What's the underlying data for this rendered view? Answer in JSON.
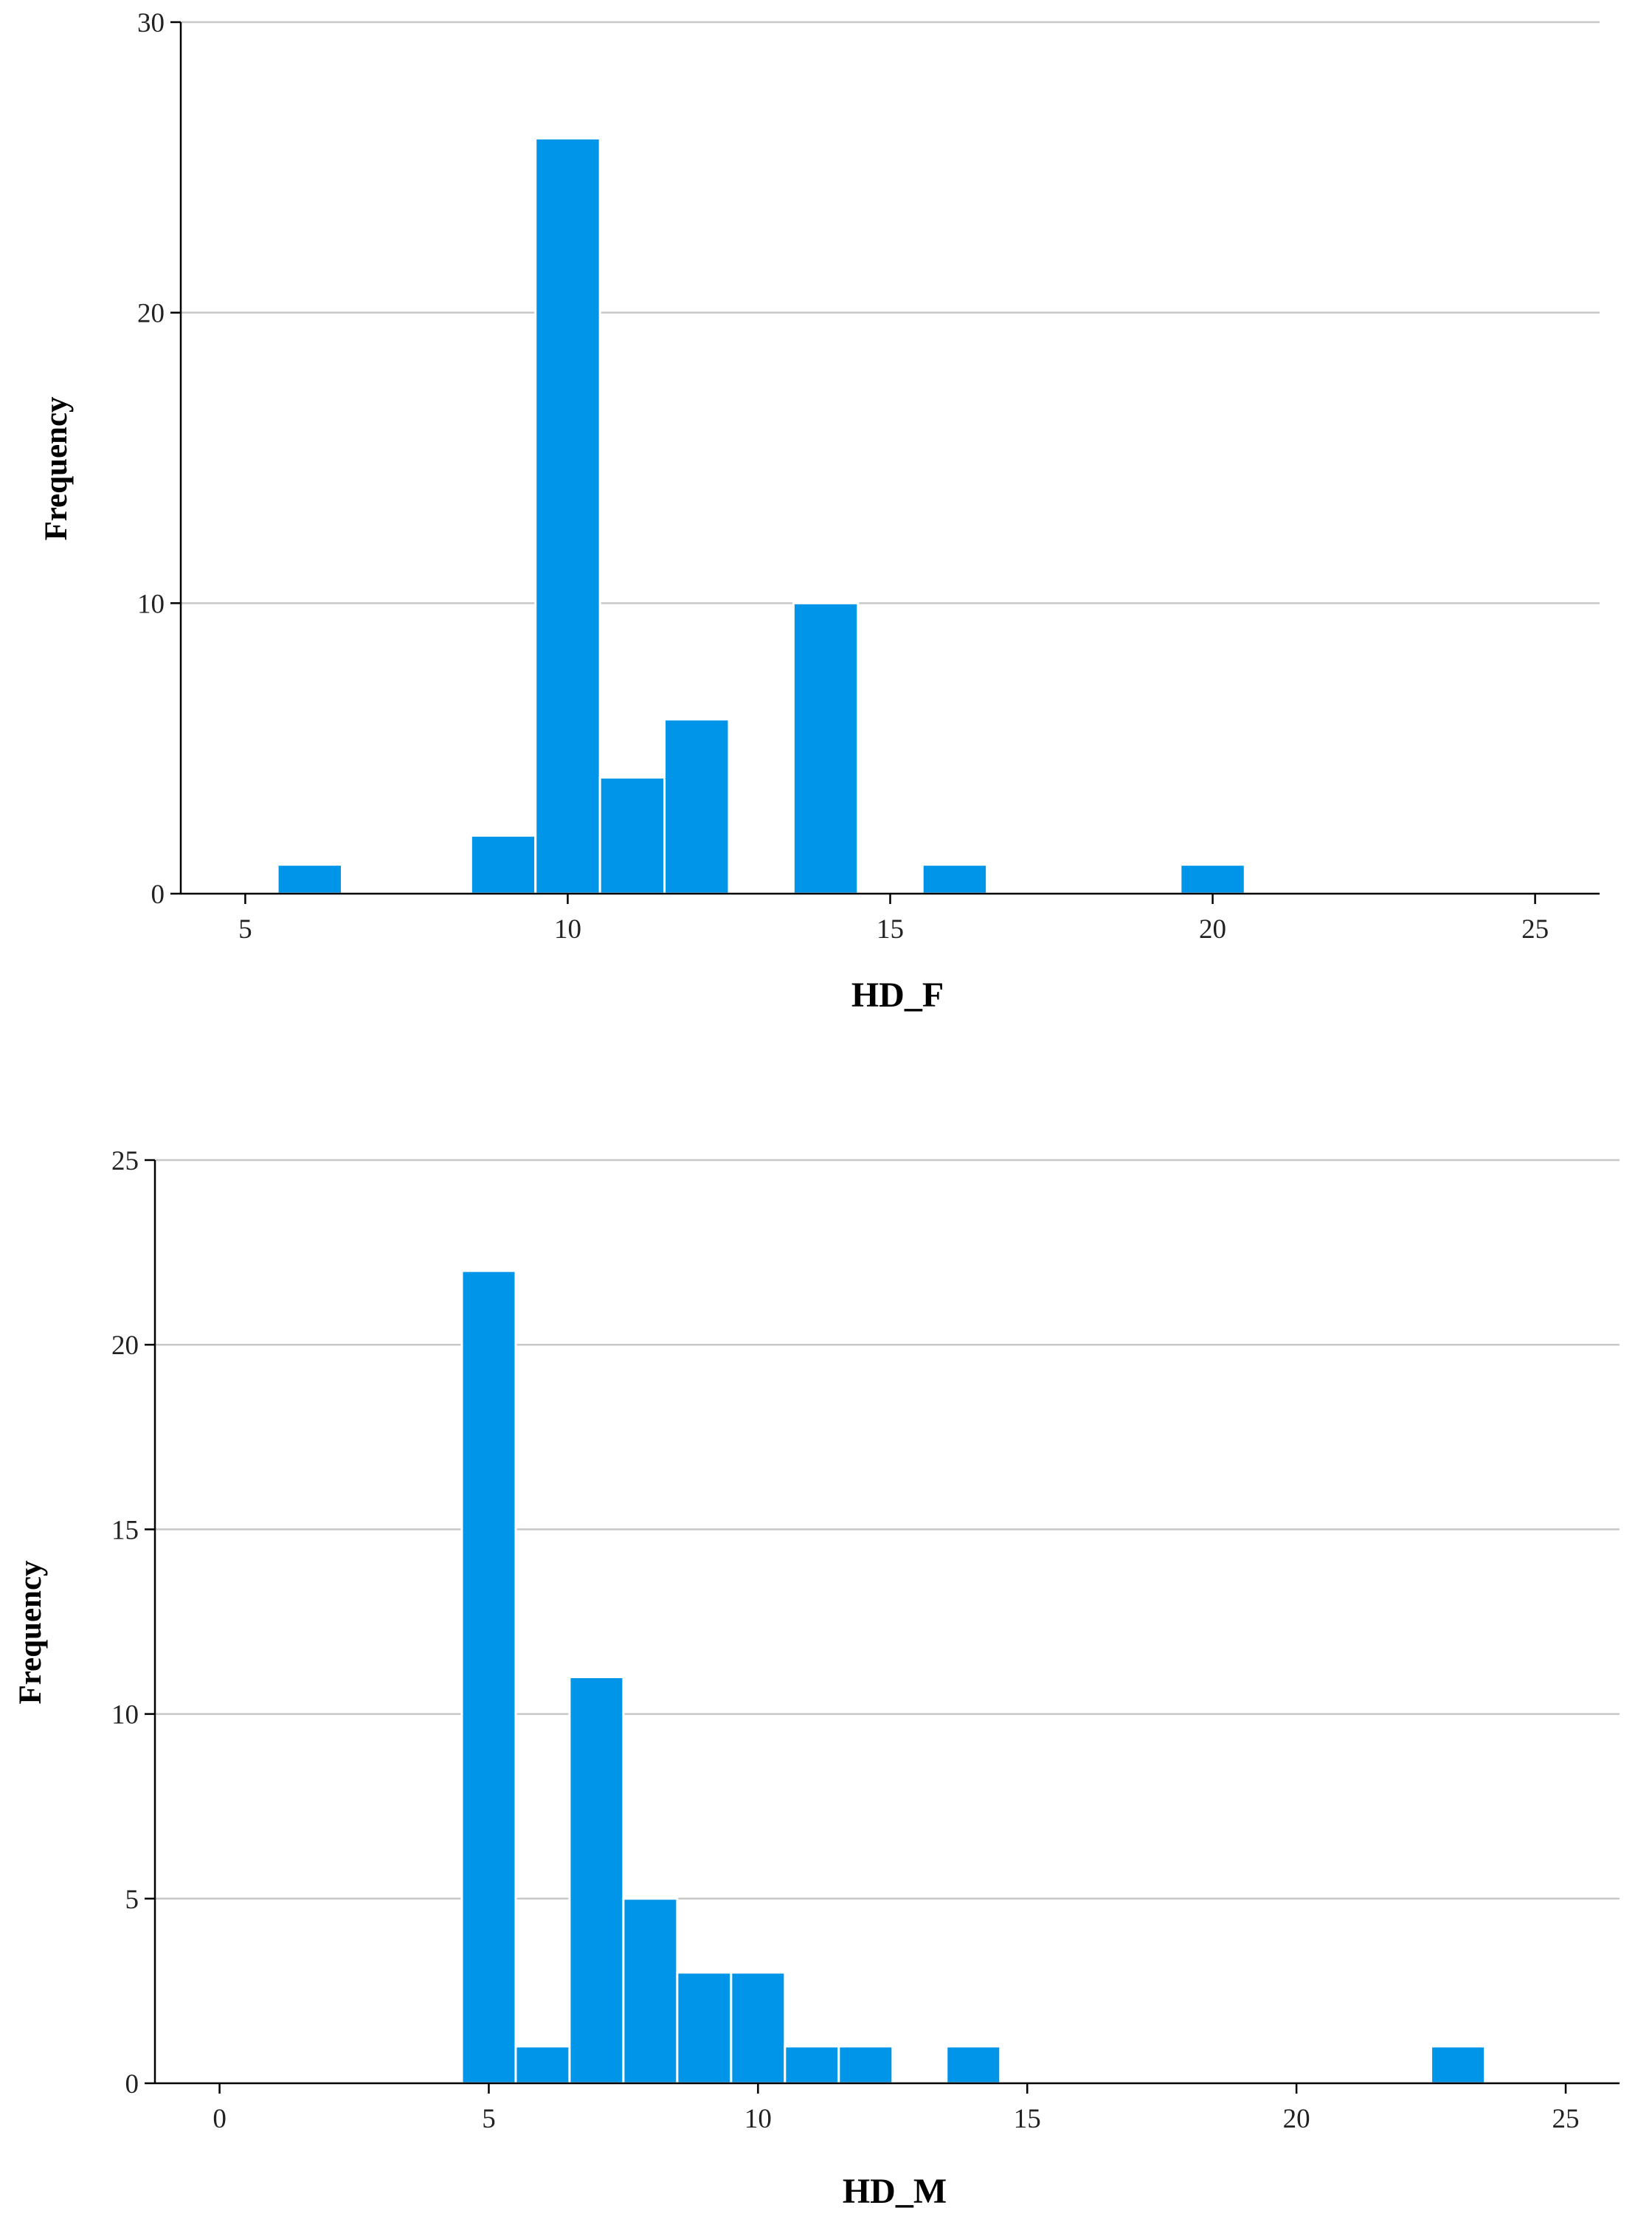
{
  "chart_data": [
    {
      "type": "bar",
      "xlabel": "HD_F",
      "ylabel": "Frequency",
      "xlim": [
        4,
        26
      ],
      "ylim": [
        0,
        30
      ],
      "xticks": [
        5,
        10,
        15,
        20,
        25
      ],
      "yticks": [
        0,
        10,
        20,
        30
      ],
      "grid": true,
      "bin_width": 1,
      "bins": [
        {
          "x": 6,
          "count": 1
        },
        {
          "x": 9,
          "count": 2
        },
        {
          "x": 10,
          "count": 26
        },
        {
          "x": 11,
          "count": 4
        },
        {
          "x": 12,
          "count": 6
        },
        {
          "x": 14,
          "count": 10
        },
        {
          "x": 16,
          "count": 1
        },
        {
          "x": 20,
          "count": 1
        }
      ]
    },
    {
      "type": "bar",
      "xlabel": "HD_M",
      "ylabel": "Frequency",
      "xlim": [
        -1.2,
        26
      ],
      "ylim": [
        0,
        25
      ],
      "xticks": [
        0,
        5,
        10,
        15,
        20,
        25
      ],
      "yticks": [
        0,
        5,
        10,
        15,
        20,
        25
      ],
      "grid": true,
      "bin_width": 1,
      "bins": [
        {
          "x": 5,
          "count": 22
        },
        {
          "x": 6,
          "count": 1
        },
        {
          "x": 7,
          "count": 11
        },
        {
          "x": 8,
          "count": 5
        },
        {
          "x": 9,
          "count": 3
        },
        {
          "x": 10,
          "count": 3
        },
        {
          "x": 11,
          "count": 1
        },
        {
          "x": 12,
          "count": 1
        },
        {
          "x": 14,
          "count": 1
        },
        {
          "x": 23,
          "count": 1
        }
      ]
    }
  ]
}
